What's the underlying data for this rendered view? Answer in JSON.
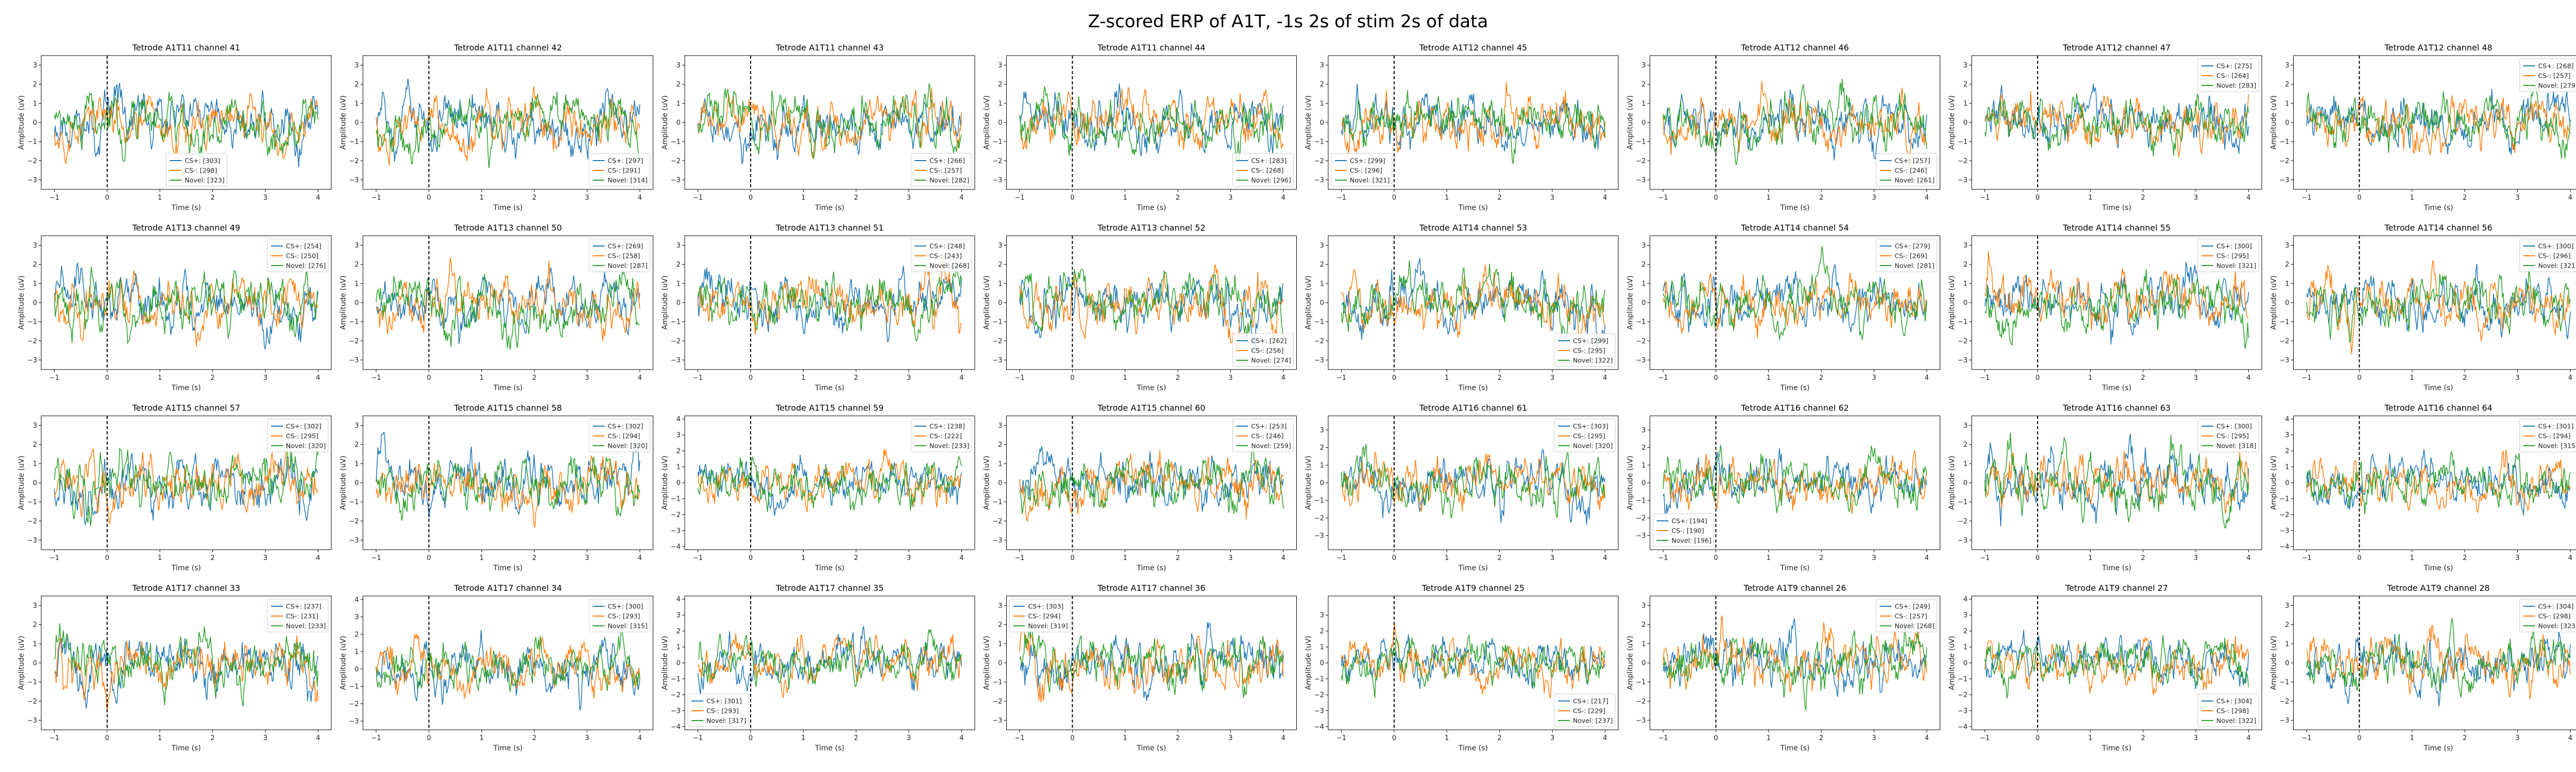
{
  "figure": {
    "title": "Z-scored ERP of A1T, -1s 2s of stim 2s of data"
  },
  "colors": {
    "cs_plus": "#1f77b4",
    "cs_minus": "#ff7f0e",
    "novel": "#2ca02c",
    "stim_line": "#000000"
  },
  "chart_data": [
    {
      "type": "line",
      "title": "Tetrode A1T11 channel 41",
      "xlabel": "Time (s)",
      "ylabel": "Amplitude (uV)",
      "xlim": [
        -1.25,
        4.25
      ],
      "ylim": [
        -3.5,
        3.5
      ],
      "xticks": [
        -1,
        0,
        1,
        2,
        3,
        4
      ],
      "yticks": [
        -3,
        -2,
        -1,
        0,
        1,
        2,
        3
      ],
      "stim_x": 0,
      "legend": "bottom-center",
      "legend_labels": [
        "CS+: [303]",
        "CS-: [298]",
        "Novel: [323]"
      ]
    },
    {
      "type": "line",
      "title": "Tetrode A1T11 channel 42",
      "xlabel": "Time (s)",
      "ylabel": "Amplitude (uV)",
      "xlim": [
        -1.25,
        4.25
      ],
      "ylim": [
        -3.5,
        3.5
      ],
      "xticks": [
        -1,
        0,
        1,
        2,
        3,
        4
      ],
      "yticks": [
        -3,
        -2,
        -1,
        0,
        1,
        2,
        3
      ],
      "stim_x": 0,
      "legend": "bottom-right",
      "legend_labels": [
        "CS+: [297]",
        "CS-: [291]",
        "Novel: [314]"
      ]
    },
    {
      "type": "line",
      "title": "Tetrode A1T11 channel 43",
      "xlabel": "Time (s)",
      "ylabel": "Amplitude (uV)",
      "xlim": [
        -1.25,
        4.25
      ],
      "ylim": [
        -3.5,
        3.5
      ],
      "xticks": [
        -1,
        0,
        1,
        2,
        3,
        4
      ],
      "yticks": [
        -3,
        -2,
        -1,
        0,
        1,
        2,
        3
      ],
      "stim_x": 0,
      "legend": "bottom-right",
      "legend_labels": [
        "CS+: [266]",
        "CS-: [257]",
        "Novel: [282]"
      ]
    },
    {
      "type": "line",
      "title": "Tetrode A1T11 channel 44",
      "xlabel": "Time (s)",
      "ylabel": "Amplitude (uV)",
      "xlim": [
        -1.25,
        4.25
      ],
      "ylim": [
        -3.5,
        3.5
      ],
      "xticks": [
        -1,
        0,
        1,
        2,
        3,
        4
      ],
      "yticks": [
        -3,
        -2,
        -1,
        0,
        1,
        2,
        3
      ],
      "stim_x": 0,
      "legend": "bottom-right",
      "legend_labels": [
        "CS+: [283]",
        "CS-: [268]",
        "Novel: [296]"
      ]
    },
    {
      "type": "line",
      "title": "Tetrode A1T12 channel 45",
      "xlabel": "Time (s)",
      "ylabel": "Amplitude (uV)",
      "xlim": [
        -1.25,
        4.25
      ],
      "ylim": [
        -3.5,
        3.5
      ],
      "xticks": [
        -1,
        0,
        1,
        2,
        3,
        4
      ],
      "yticks": [
        -3,
        -2,
        -1,
        0,
        1,
        2,
        3
      ],
      "stim_x": 0,
      "legend": "bottom-left",
      "legend_labels": [
        "CS+: [299]",
        "CS-: [296]",
        "Novel: [321]"
      ]
    },
    {
      "type": "line",
      "title": "Tetrode A1T12 channel 46",
      "xlabel": "Time (s)",
      "ylabel": "Amplitude (uV)",
      "xlim": [
        -1.25,
        4.25
      ],
      "ylim": [
        -3.5,
        3.5
      ],
      "xticks": [
        -1,
        0,
        1,
        2,
        3,
        4
      ],
      "yticks": [
        -3,
        -2,
        -1,
        0,
        1,
        2,
        3
      ],
      "stim_x": 0,
      "legend": "bottom-right",
      "legend_labels": [
        "CS+: [257]",
        "CS-: [246]",
        "Novel: [261]"
      ]
    },
    {
      "type": "line",
      "title": "Tetrode A1T12 channel 47",
      "xlabel": "Time (s)",
      "ylabel": "Amplitude (uV)",
      "xlim": [
        -1.25,
        4.25
      ],
      "ylim": [
        -3.5,
        3.5
      ],
      "xticks": [
        -1,
        0,
        1,
        2,
        3,
        4
      ],
      "yticks": [
        -3,
        -2,
        -1,
        0,
        1,
        2,
        3
      ],
      "stim_x": 0,
      "legend": "top-right",
      "legend_labels": [
        "CS+: [275]",
        "CS-: [264]",
        "Novel: [283]"
      ]
    },
    {
      "type": "line",
      "title": "Tetrode A1T12 channel 48",
      "xlabel": "Time (s)",
      "ylabel": "Amplitude (uV)",
      "xlim": [
        -1.25,
        4.25
      ],
      "ylim": [
        -3.5,
        3.5
      ],
      "xticks": [
        -1,
        0,
        1,
        2,
        3,
        4
      ],
      "yticks": [
        -3,
        -2,
        -1,
        0,
        1,
        2,
        3
      ],
      "stim_x": 0,
      "legend": "top-right",
      "legend_labels": [
        "CS+: [268]",
        "CS-: [257]",
        "Novel: [279]"
      ]
    },
    {
      "type": "line",
      "title": "Tetrode A1T13 channel 49",
      "xlabel": "Time (s)",
      "ylabel": "Amplitude (uV)",
      "xlim": [
        -1.25,
        4.25
      ],
      "ylim": [
        -3.5,
        3.5
      ],
      "xticks": [
        -1,
        0,
        1,
        2,
        3,
        4
      ],
      "yticks": [
        -3,
        -2,
        -1,
        0,
        1,
        2,
        3
      ],
      "stim_x": 0,
      "legend": "top-right",
      "legend_labels": [
        "CS+: [254]",
        "CS-: [250]",
        "Novel: [276]"
      ]
    },
    {
      "type": "line",
      "title": "Tetrode A1T13 channel 50",
      "xlabel": "Time (s)",
      "ylabel": "Amplitude (uV)",
      "xlim": [
        -1.25,
        4.25
      ],
      "ylim": [
        -3.5,
        3.5
      ],
      "xticks": [
        -1,
        0,
        1,
        2,
        3,
        4
      ],
      "yticks": [
        -3,
        -2,
        -1,
        0,
        1,
        2,
        3
      ],
      "stim_x": 0,
      "legend": "top-right",
      "legend_labels": [
        "CS+: [269]",
        "CS-: [258]",
        "Novel: [287]"
      ]
    },
    {
      "type": "line",
      "title": "Tetrode A1T13 channel 51",
      "xlabel": "Time (s)",
      "ylabel": "Amplitude (uV)",
      "xlim": [
        -1.25,
        4.25
      ],
      "ylim": [
        -3.5,
        3.5
      ],
      "xticks": [
        -1,
        0,
        1,
        2,
        3,
        4
      ],
      "yticks": [
        -3,
        -2,
        -1,
        0,
        1,
        2,
        3
      ],
      "stim_x": 0,
      "legend": "top-right",
      "legend_labels": [
        "CS+: [248]",
        "CS-: [243]",
        "Novel: [268]"
      ]
    },
    {
      "type": "line",
      "title": "Tetrode A1T13 channel 52",
      "xlabel": "Time (s)",
      "ylabel": "Amplitude (uV)",
      "xlim": [
        -1.25,
        4.25
      ],
      "ylim": [
        -3.5,
        3.5
      ],
      "xticks": [
        -1,
        0,
        1,
        2,
        3,
        4
      ],
      "yticks": [
        -3,
        -2,
        -1,
        0,
        1,
        2,
        3
      ],
      "stim_x": 0,
      "legend": "bottom-right",
      "legend_labels": [
        "CS+: [262]",
        "CS-: [256]",
        "Novel: [274]"
      ]
    },
    {
      "type": "line",
      "title": "Tetrode A1T14 channel 53",
      "xlabel": "Time (s)",
      "ylabel": "Amplitude (uV)",
      "xlim": [
        -1.25,
        4.25
      ],
      "ylim": [
        -3.5,
        3.5
      ],
      "xticks": [
        -1,
        0,
        1,
        2,
        3,
        4
      ],
      "yticks": [
        -3,
        -2,
        -1,
        0,
        1,
        2,
        3
      ],
      "stim_x": 0,
      "legend": "bottom-right",
      "legend_labels": [
        "CS+: [299]",
        "CS-: [295]",
        "Novel: [322]"
      ]
    },
    {
      "type": "line",
      "title": "Tetrode A1T14 channel 54",
      "xlabel": "Time (s)",
      "ylabel": "Amplitude (uV)",
      "xlim": [
        -1.25,
        4.25
      ],
      "ylim": [
        -3.5,
        3.5
      ],
      "xticks": [
        -1,
        0,
        1,
        2,
        3,
        4
      ],
      "yticks": [
        -3,
        -2,
        -1,
        0,
        1,
        2,
        3
      ],
      "stim_x": 0,
      "legend": "top-right",
      "legend_labels": [
        "CS+: [279]",
        "CS-: [269]",
        "Novel: [281]"
      ]
    },
    {
      "type": "line",
      "title": "Tetrode A1T14 channel 55",
      "xlabel": "Time (s)",
      "ylabel": "Amplitude (uV)",
      "xlim": [
        -1.25,
        4.25
      ],
      "ylim": [
        -3.5,
        3.5
      ],
      "xticks": [
        -1,
        0,
        1,
        2,
        3,
        4
      ],
      "yticks": [
        -3,
        -2,
        -1,
        0,
        1,
        2,
        3
      ],
      "stim_x": 0,
      "legend": "top-right",
      "legend_labels": [
        "CS+: [300]",
        "CS-: [295]",
        "Novel: [321]"
      ]
    },
    {
      "type": "line",
      "title": "Tetrode A1T14 channel 56",
      "xlabel": "Time (s)",
      "ylabel": "Amplitude (uV)",
      "xlim": [
        -1.25,
        4.25
      ],
      "ylim": [
        -3.5,
        3.5
      ],
      "xticks": [
        -1,
        0,
        1,
        2,
        3,
        4
      ],
      "yticks": [
        -3,
        -2,
        -1,
        0,
        1,
        2,
        3
      ],
      "stim_x": 0,
      "legend": "top-right",
      "legend_labels": [
        "CS+: [300]",
        "CS-: [296]",
        "Novel: [321]"
      ]
    },
    {
      "type": "line",
      "title": "Tetrode A1T15 channel 57",
      "xlabel": "Time (s)",
      "ylabel": "Amplitude (uV)",
      "xlim": [
        -1.25,
        4.25
      ],
      "ylim": [
        -3.5,
        3.5
      ],
      "xticks": [
        -1,
        0,
        1,
        2,
        3,
        4
      ],
      "yticks": [
        -3,
        -2,
        -1,
        0,
        1,
        2,
        3
      ],
      "stim_x": 0,
      "legend": "top-right",
      "legend_labels": [
        "CS+: [302]",
        "CS-: [295]",
        "Novel: [320]"
      ]
    },
    {
      "type": "line",
      "title": "Tetrode A1T15 channel 58",
      "xlabel": "Time (s)",
      "ylabel": "Amplitude (uV)",
      "xlim": [
        -1.25,
        4.25
      ],
      "ylim": [
        -3.5,
        3.5
      ],
      "xticks": [
        -1,
        0,
        1,
        2,
        3,
        4
      ],
      "yticks": [
        -3,
        -2,
        -1,
        0,
        1,
        2,
        3
      ],
      "stim_x": 0,
      "legend": "top-right",
      "legend_labels": [
        "CS+: [302]",
        "CS-: [294]",
        "Novel: [320]"
      ]
    },
    {
      "type": "line",
      "title": "Tetrode A1T15 channel 59",
      "xlabel": "Time (s)",
      "ylabel": "Amplitude (uV)",
      "xlim": [
        -1.25,
        4.25
      ],
      "ylim": [
        -4.2,
        4.2
      ],
      "xticks": [
        -1,
        0,
        1,
        2,
        3,
        4
      ],
      "yticks": [
        -4,
        -3,
        -2,
        -1,
        0,
        1,
        2,
        3,
        4
      ],
      "stim_x": 0,
      "legend": "top-right",
      "legend_labels": [
        "CS+: [238]",
        "CS-: [222]",
        "Novel: [233]"
      ]
    },
    {
      "type": "line",
      "title": "Tetrode A1T15 channel 60",
      "xlabel": "Time (s)",
      "ylabel": "Amplitude (uV)",
      "xlim": [
        -1.25,
        4.25
      ],
      "ylim": [
        -3.5,
        3.5
      ],
      "xticks": [
        -1,
        0,
        1,
        2,
        3,
        4
      ],
      "yticks": [
        -3,
        -2,
        -1,
        0,
        1,
        2,
        3
      ],
      "stim_x": 0,
      "legend": "top-right",
      "legend_labels": [
        "CS+: [253]",
        "CS-: [246]",
        "Novel: [259]"
      ]
    },
    {
      "type": "line",
      "title": "Tetrode A1T16 channel 61",
      "xlabel": "Time (s)",
      "ylabel": "Amplitude (uV)",
      "xlim": [
        -1.25,
        4.25
      ],
      "ylim": [
        -3.8,
        3.8
      ],
      "xticks": [
        -1,
        0,
        1,
        2,
        3,
        4
      ],
      "yticks": [
        -3,
        -2,
        -1,
        0,
        1,
        2,
        3
      ],
      "stim_x": 0,
      "legend": "top-right",
      "legend_labels": [
        "CS+: [303]",
        "CS-: [295]",
        "Novel: [320]"
      ]
    },
    {
      "type": "line",
      "title": "Tetrode A1T16 channel 62",
      "xlabel": "Time (s)",
      "ylabel": "Amplitude (uV)",
      "xlim": [
        -1.25,
        4.25
      ],
      "ylim": [
        -3.8,
        3.8
      ],
      "xticks": [
        -1,
        0,
        1,
        2,
        3,
        4
      ],
      "yticks": [
        -3,
        -2,
        -1,
        0,
        1,
        2,
        3
      ],
      "stim_x": 0,
      "legend": "bottom-left",
      "legend_labels": [
        "CS+: [194]",
        "CS-: [190]",
        "Novel: [196]"
      ]
    },
    {
      "type": "line",
      "title": "Tetrode A1T16 channel 63",
      "xlabel": "Time (s)",
      "ylabel": "Amplitude (uV)",
      "xlim": [
        -1.25,
        4.25
      ],
      "ylim": [
        -3.5,
        3.5
      ],
      "xticks": [
        -1,
        0,
        1,
        2,
        3,
        4
      ],
      "yticks": [
        -3,
        -2,
        -1,
        0,
        1,
        2,
        3
      ],
      "stim_x": 0,
      "legend": "top-right",
      "legend_labels": [
        "CS+: [300]",
        "CS-: [295]",
        "Novel: [318]"
      ]
    },
    {
      "type": "line",
      "title": "Tetrode A1T16 channel 64",
      "xlabel": "Time (s)",
      "ylabel": "Amplitude (uV)",
      "xlim": [
        -1.25,
        4.25
      ],
      "ylim": [
        -4.2,
        4.2
      ],
      "xticks": [
        -1,
        0,
        1,
        2,
        3,
        4
      ],
      "yticks": [
        -4,
        -3,
        -2,
        -1,
        0,
        1,
        2,
        3,
        4
      ],
      "stim_x": 0,
      "legend": "top-right",
      "legend_labels": [
        "CS+: [301]",
        "CS-: [294]",
        "Novel: [315]"
      ]
    },
    {
      "type": "line",
      "title": "Tetrode A1T17 channel 33",
      "xlabel": "Time (s)",
      "ylabel": "Amplitude (uV)",
      "xlim": [
        -1.25,
        4.25
      ],
      "ylim": [
        -3.5,
        3.5
      ],
      "xticks": [
        -1,
        0,
        1,
        2,
        3,
        4
      ],
      "yticks": [
        -3,
        -2,
        -1,
        0,
        1,
        2,
        3
      ],
      "stim_x": 0,
      "legend": "top-right",
      "legend_labels": [
        "CS+: [237]",
        "CS-: [231]",
        "Novel: [233]"
      ]
    },
    {
      "type": "line",
      "title": "Tetrode A1T17 channel 34",
      "xlabel": "Time (s)",
      "ylabel": "Amplitude (uV)",
      "xlim": [
        -1.25,
        4.25
      ],
      "ylim": [
        -3.5,
        4.2
      ],
      "xticks": [
        -1,
        0,
        1,
        2,
        3,
        4
      ],
      "yticks": [
        -3,
        -2,
        -1,
        0,
        1,
        2,
        3,
        4
      ],
      "stim_x": 0,
      "legend": "top-right",
      "legend_labels": [
        "CS+: [300]",
        "CS-: [293]",
        "Novel: [315]"
      ]
    },
    {
      "type": "line",
      "title": "Tetrode A1T17 channel 35",
      "xlabel": "Time (s)",
      "ylabel": "Amplitude (uV)",
      "xlim": [
        -1.25,
        4.25
      ],
      "ylim": [
        -4.2,
        4.2
      ],
      "xticks": [
        -1,
        0,
        1,
        2,
        3,
        4
      ],
      "yticks": [
        -4,
        -3,
        -2,
        -1,
        0,
        1,
        2,
        3,
        4
      ],
      "stim_x": 0,
      "legend": "bottom-left",
      "legend_labels": [
        "CS+: [301]",
        "CS-: [293]",
        "Novel: [317]"
      ]
    },
    {
      "type": "line",
      "title": "Tetrode A1T17 channel 36",
      "xlabel": "Time (s)",
      "ylabel": "Amplitude (uV)",
      "xlim": [
        -1.25,
        4.25
      ],
      "ylim": [
        -3.5,
        3.5
      ],
      "xticks": [
        -1,
        0,
        1,
        2,
        3,
        4
      ],
      "yticks": [
        -3,
        -2,
        -1,
        0,
        1,
        2,
        3
      ],
      "stim_x": 0,
      "legend": "top-left",
      "legend_labels": [
        "CS+: [303]",
        "CS-: [294]",
        "Novel: [319]"
      ]
    },
    {
      "type": "line",
      "title": "Tetrode A1T9 channel 25",
      "xlabel": "Time (s)",
      "ylabel": "Amplitude (uV)",
      "xlim": [
        -1.25,
        4.25
      ],
      "ylim": [
        -4.2,
        4.2
      ],
      "xticks": [
        -1,
        0,
        1,
        2,
        3,
        4
      ],
      "yticks": [
        -4,
        -3,
        -2,
        -1,
        0,
        1,
        2,
        3
      ],
      "stim_x": 0,
      "legend": "bottom-right",
      "legend_labels": [
        "CS+: [217]",
        "CS-: [229]",
        "Novel: [237]"
      ]
    },
    {
      "type": "line",
      "title": "Tetrode A1T9 channel 26",
      "xlabel": "Time (s)",
      "ylabel": "Amplitude (uV)",
      "xlim": [
        -1.25,
        4.25
      ],
      "ylim": [
        -3.5,
        3.5
      ],
      "xticks": [
        -1,
        0,
        1,
        2,
        3,
        4
      ],
      "yticks": [
        -3,
        -2,
        -1,
        0,
        1,
        2,
        3
      ],
      "stim_x": 0,
      "legend": "top-right",
      "legend_labels": [
        "CS+: [249]",
        "CS-: [257]",
        "Novel: [268]"
      ]
    },
    {
      "type": "line",
      "title": "Tetrode A1T9 channel 27",
      "xlabel": "Time (s)",
      "ylabel": "Amplitude (uV)",
      "xlim": [
        -1.25,
        4.25
      ],
      "ylim": [
        -4.2,
        4.2
      ],
      "xticks": [
        -1,
        0,
        1,
        2,
        3,
        4
      ],
      "yticks": [
        -4,
        -3,
        -2,
        -1,
        0,
        1,
        2,
        3,
        4
      ],
      "stim_x": 0,
      "legend": "bottom-right",
      "legend_labels": [
        "CS+: [304]",
        "CS-: [298]",
        "Novel: [322]"
      ]
    },
    {
      "type": "line",
      "title": "Tetrode A1T9 channel 28",
      "xlabel": "Time (s)",
      "ylabel": "Amplitude (uV)",
      "xlim": [
        -1.25,
        4.25
      ],
      "ylim": [
        -3.5,
        3.5
      ],
      "xticks": [
        -1,
        0,
        1,
        2,
        3,
        4
      ],
      "yticks": [
        -3,
        -2,
        -1,
        0,
        1,
        2,
        3
      ],
      "stim_x": 0,
      "legend": "top-right",
      "legend_labels": [
        "CS+: [304]",
        "CS-: [298]",
        "Novel: [323]"
      ]
    }
  ]
}
